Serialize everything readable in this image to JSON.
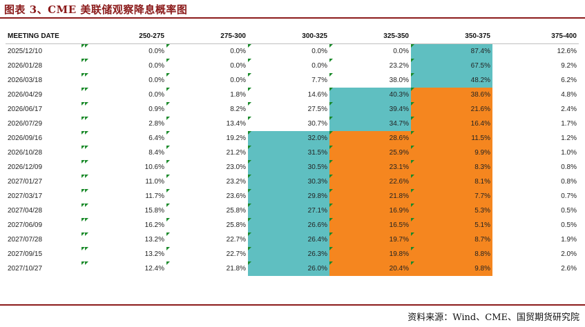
{
  "figure_title": "图表 3、CME 美联储观察降息概率图",
  "source": "资料来源：Wind、CME、国贸期货研究院",
  "table": {
    "headers": [
      "MEETING DATE",
      "250-275",
      "275-300",
      "300-325",
      "325-350",
      "350-375",
      "375-400"
    ],
    "rows": [
      {
        "date": "2025/12/10",
        "values": [
          "0.0%",
          "0.0%",
          "0.0%",
          "0.0%",
          "87.4%",
          "12.6%"
        ]
      },
      {
        "date": "2026/01/28",
        "values": [
          "0.0%",
          "0.0%",
          "0.0%",
          "23.2%",
          "67.5%",
          "9.2%"
        ]
      },
      {
        "date": "2026/03/18",
        "values": [
          "0.0%",
          "0.0%",
          "7.7%",
          "38.0%",
          "48.2%",
          "6.2%"
        ]
      },
      {
        "date": "2026/04/29",
        "values": [
          "0.0%",
          "1.8%",
          "14.6%",
          "40.3%",
          "38.6%",
          "4.8%"
        ]
      },
      {
        "date": "2026/06/17",
        "values": [
          "0.9%",
          "8.2%",
          "27.5%",
          "39.4%",
          "21.6%",
          "2.4%"
        ]
      },
      {
        "date": "2026/07/29",
        "values": [
          "2.8%",
          "13.4%",
          "30.7%",
          "34.7%",
          "16.4%",
          "1.7%"
        ]
      },
      {
        "date": "2026/09/16",
        "values": [
          "6.4%",
          "19.2%",
          "32.0%",
          "28.6%",
          "11.5%",
          "1.2%"
        ]
      },
      {
        "date": "2026/10/28",
        "values": [
          "8.4%",
          "21.2%",
          "31.5%",
          "25.9%",
          "9.9%",
          "1.0%"
        ]
      },
      {
        "date": "2026/12/09",
        "values": [
          "10.6%",
          "23.0%",
          "30.5%",
          "23.1%",
          "8.3%",
          "0.8%"
        ]
      },
      {
        "date": "2027/01/27",
        "values": [
          "11.0%",
          "23.2%",
          "30.3%",
          "22.6%",
          "8.1%",
          "0.8%"
        ]
      },
      {
        "date": "2027/03/17",
        "values": [
          "11.7%",
          "23.6%",
          "29.8%",
          "21.8%",
          "7.7%",
          "0.7%"
        ]
      },
      {
        "date": "2027/04/28",
        "values": [
          "15.8%",
          "25.8%",
          "27.1%",
          "16.9%",
          "5.3%",
          "0.5%"
        ]
      },
      {
        "date": "2027/06/09",
        "values": [
          "16.2%",
          "25.8%",
          "26.6%",
          "16.5%",
          "5.1%",
          "0.5%"
        ]
      },
      {
        "date": "2027/07/28",
        "values": [
          "13.2%",
          "22.7%",
          "26.4%",
          "19.7%",
          "8.7%",
          "1.9%"
        ]
      },
      {
        "date": "2027/09/15",
        "values": [
          "13.2%",
          "22.7%",
          "26.3%",
          "19.8%",
          "8.8%",
          "2.0%"
        ]
      },
      {
        "date": "2027/10/27",
        "values": [
          "12.4%",
          "21.8%",
          "26.0%",
          "20.4%",
          "9.8%",
          "2.6%"
        ]
      }
    ],
    "cell_fill": [
      [
        "",
        "",
        "",
        "",
        "teal",
        ""
      ],
      [
        "",
        "",
        "",
        "",
        "teal",
        ""
      ],
      [
        "",
        "",
        "",
        "",
        "teal",
        ""
      ],
      [
        "",
        "",
        "",
        "teal",
        "orange",
        ""
      ],
      [
        "",
        "",
        "",
        "teal",
        "orange",
        ""
      ],
      [
        "",
        "",
        "",
        "teal",
        "orange",
        ""
      ],
      [
        "",
        "",
        "teal",
        "orange",
        "orange",
        ""
      ],
      [
        "",
        "",
        "teal",
        "orange",
        "orange",
        ""
      ],
      [
        "",
        "",
        "teal",
        "orange",
        "orange",
        ""
      ],
      [
        "",
        "",
        "teal",
        "orange",
        "orange",
        ""
      ],
      [
        "",
        "",
        "teal",
        "orange",
        "orange",
        ""
      ],
      [
        "",
        "",
        "teal",
        "orange",
        "orange",
        ""
      ],
      [
        "",
        "",
        "teal",
        "orange",
        "orange",
        ""
      ],
      [
        "",
        "",
        "teal",
        "orange",
        "orange",
        ""
      ],
      [
        "",
        "",
        "teal",
        "orange",
        "orange",
        ""
      ],
      [
        "",
        "",
        "teal",
        "orange",
        "orange",
        ""
      ]
    ],
    "colors": {
      "teal": "#5fbfc1",
      "orange": "#f5861f",
      "marker": "#1a8a2a"
    }
  }
}
